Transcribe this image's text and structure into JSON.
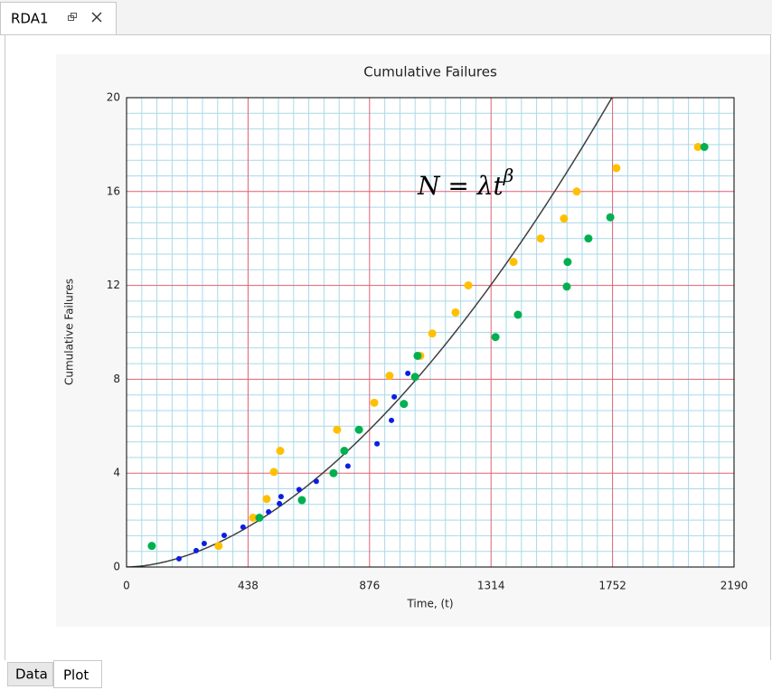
{
  "window": {
    "tab": "RDA1"
  },
  "bottom_tabs": [
    "Data",
    "Plot"
  ],
  "chart_data": {
    "type": "scatter",
    "title": "Cumulative Failures",
    "xlabel": "Time, (t)",
    "ylabel": "Cumulative Failures",
    "xlim": [
      0,
      2190
    ],
    "ylim": [
      0,
      20
    ],
    "xticks": [
      0,
      438,
      876,
      1314,
      1752,
      2190
    ],
    "yticks": [
      0,
      4,
      8,
      12,
      16,
      20
    ],
    "grid": true,
    "minor_x_divisions": 8,
    "minor_y_divisions": 6,
    "grid_color": "#e06070",
    "minor_grid_color": "#a9d9e8",
    "curve": {
      "lambda": 3.48e-05,
      "beta": 1.776,
      "color": "#404040"
    },
    "equation": {
      "base": "N = λt",
      "exponent": "β"
    },
    "series": [
      {
        "color": "#0a1ee6",
        "marker_size": 3,
        "x": [
          189,
          251,
          280,
          352,
          420,
          512,
          551,
          557,
          622,
          684,
          798,
          903,
          955,
          965,
          1014
        ],
        "values": [
          0.35,
          0.7,
          1.0,
          1.35,
          1.7,
          2.35,
          2.7,
          3.0,
          3.3,
          3.65,
          4.3,
          5.25,
          6.25,
          7.25,
          8.25
        ]
      },
      {
        "color": "#ffc000",
        "marker_size": 4.5,
        "x": [
          332,
          456,
          505,
          531,
          554,
          759,
          893,
          948,
          1059,
          1102,
          1186,
          1232,
          1395,
          1493,
          1577,
          1623,
          1766,
          2060
        ],
        "values": [
          0.9,
          2.1,
          2.9,
          4.05,
          4.95,
          5.85,
          7.0,
          8.15,
          9.0,
          9.95,
          10.85,
          12.0,
          13.0,
          14.0,
          14.85,
          16.0,
          17.0,
          17.9
        ]
      },
      {
        "color": "#00b050",
        "marker_size": 4.5,
        "x": [
          91,
          479,
          632,
          746,
          785,
          838,
          1000,
          1040,
          1049,
          1330,
          1411,
          1587,
          1590,
          1665,
          1744,
          2083
        ],
        "values": [
          0.9,
          2.1,
          2.85,
          4.0,
          4.95,
          5.85,
          6.95,
          8.1,
          9.0,
          9.8,
          10.75,
          11.95,
          13.0,
          14.0,
          14.9,
          17.9
        ]
      }
    ]
  }
}
